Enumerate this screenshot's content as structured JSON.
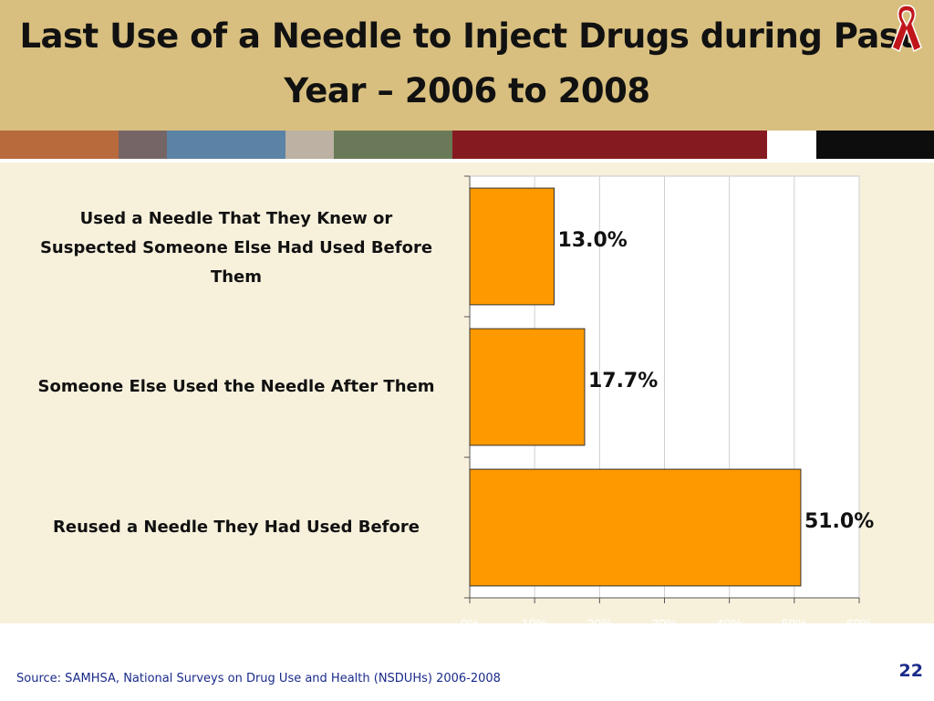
{
  "slide": {
    "title_line1": "Last Use of a Needle to Inject Drugs during Past",
    "title_line2": "Year – 2006 to 2008",
    "source": "Source: SAMHSA, National Surveys on Drug Use and Health (NSDUHs) 2006-2008",
    "page_number": "22",
    "ribbon_icon": "awareness-ribbon-icon",
    "stripe_colors": [
      "#b86a3c",
      "#766567",
      "#5b83a5",
      "#bcb1a2",
      "#6a7a59",
      "#851b20",
      "#ffffff",
      "#0d0d0d"
    ]
  },
  "chart_data": {
    "type": "bar",
    "orientation": "horizontal",
    "categories": [
      "Used a Needle That They Knew or Suspected Someone Else Had Used Before Them",
      "Someone Else Used the Needle After Them",
      "Reused a Needle They Had Used Before"
    ],
    "category_label_lines": [
      [
        "Used a Needle That They Knew or",
        "Suspected Someone Else Had Used Before",
        "Them"
      ],
      [
        "Someone Else Used the Needle After Them"
      ],
      [
        "Reused a Needle They Had Used Before"
      ]
    ],
    "values": [
      13.0,
      17.7,
      51.0
    ],
    "data_labels": [
      "13.0%",
      "17.7%",
      "51.0%"
    ],
    "xlim": [
      0,
      60
    ],
    "x_ticks": [
      0,
      10,
      20,
      30,
      40,
      50,
      60
    ],
    "x_tick_labels": [
      "0%",
      "10%",
      "20%",
      "30%",
      "40%",
      "50%",
      "60%"
    ],
    "grid": true,
    "bar_color": "#ff9900",
    "bar_edge_color": "#333333",
    "tick_label_color": "#ffffff"
  }
}
